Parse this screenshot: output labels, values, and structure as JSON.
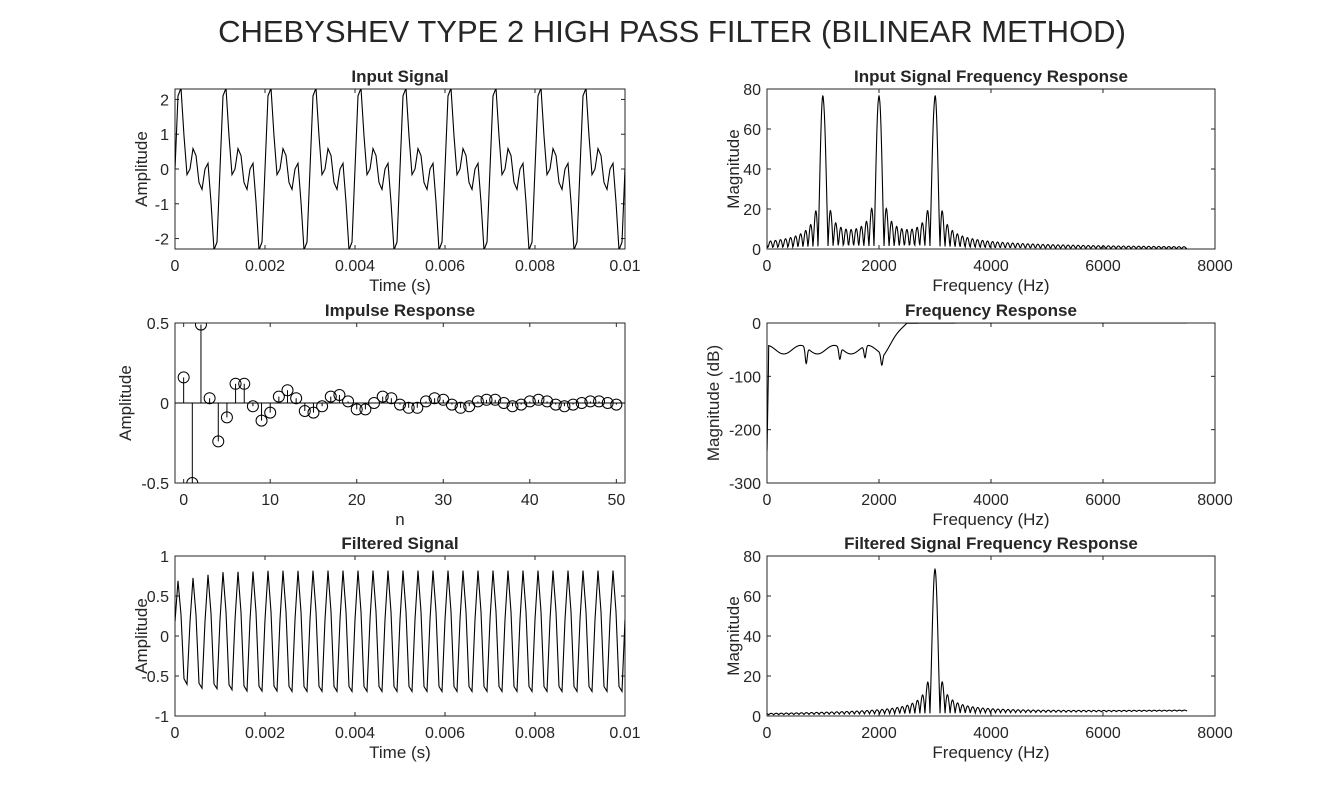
{
  "figure_title": "CHEBYSHEV TYPE 2 HIGH PASS FILTER (BILINEAR METHOD)",
  "chart_data": [
    {
      "id": "input_signal",
      "type": "line",
      "title": "Input Signal",
      "xlabel": "Time (s)",
      "ylabel": "Amplitude",
      "xlim": [
        0,
        0.01
      ],
      "ylim": [
        -2.3,
        2.3
      ],
      "xticks": [
        0,
        0.002,
        0.004,
        0.006,
        0.008,
        0.01
      ],
      "yticks": [
        -2,
        -1,
        0,
        1,
        2
      ],
      "xtick_labels": [
        "0",
        "0.002",
        "0.004",
        "0.006",
        "0.008",
        "0.01"
      ],
      "ytick_labels": [
        "-2",
        "-1",
        "0",
        "1",
        "2"
      ],
      "grid": false,
      "line_color": "#000000",
      "signal": {
        "kind": "sum_of_sines",
        "fs": 15000,
        "components_hz": [
          1000,
          2000,
          3000
        ],
        "amplitudes": [
          1,
          1,
          1
        ],
        "duration_s": 0.01
      }
    },
    {
      "id": "input_spectrum",
      "type": "line",
      "title": "Input Signal Frequency Response",
      "xlabel": "Frequency (Hz)",
      "ylabel": "Magnitude",
      "xlim": [
        0,
        8000
      ],
      "ylim": [
        0,
        80
      ],
      "xticks": [
        0,
        2000,
        4000,
        6000,
        8000
      ],
      "yticks": [
        0,
        20,
        40,
        60,
        80
      ],
      "xtick_labels": [
        "0",
        "2000",
        "4000",
        "6000",
        "8000"
      ],
      "ytick_labels": [
        "0",
        "20",
        "40",
        "60",
        "80"
      ],
      "grid": false,
      "line_color": "#000000",
      "peaks": [
        {
          "x": 1000,
          "y": 75
        },
        {
          "x": 2000,
          "y": 75
        },
        {
          "x": 3000,
          "y": 75
        }
      ],
      "freq_max": 7500
    },
    {
      "id": "impulse_response",
      "type": "stem",
      "title": "Impulse Response",
      "xlabel": "n",
      "ylabel": "Amplitude",
      "xlim": [
        -1,
        51
      ],
      "ylim": [
        -0.5,
        0.5
      ],
      "xticks": [
        0,
        10,
        20,
        30,
        40,
        50
      ],
      "yticks": [
        -0.5,
        0,
        0.5
      ],
      "xtick_labels": [
        "0",
        "10",
        "20",
        "30",
        "40",
        "50"
      ],
      "ytick_labels": [
        "-0.5",
        "0",
        "0.5"
      ],
      "grid": false,
      "line_color": "#000000",
      "x": [
        0,
        1,
        2,
        3,
        4,
        5,
        6,
        7,
        8,
        9,
        10,
        11,
        12,
        13,
        14,
        15,
        16,
        17,
        18,
        19,
        20,
        21,
        22,
        23,
        24,
        25,
        26,
        27,
        28,
        29,
        30,
        31,
        32,
        33,
        34,
        35,
        36,
        37,
        38,
        39,
        40,
        41,
        42,
        43,
        44,
        45,
        46,
        47,
        48,
        49,
        50
      ],
      "values": [
        0.16,
        -0.5,
        0.49,
        0.03,
        -0.24,
        -0.09,
        0.12,
        0.12,
        -0.02,
        -0.11,
        -0.06,
        0.04,
        0.08,
        0.03,
        -0.05,
        -0.06,
        -0.02,
        0.04,
        0.05,
        0.01,
        -0.04,
        -0.04,
        0.0,
        0.04,
        0.03,
        -0.01,
        -0.03,
        -0.03,
        0.01,
        0.03,
        0.02,
        -0.01,
        -0.03,
        -0.02,
        0.01,
        0.02,
        0.02,
        0.0,
        -0.02,
        -0.01,
        0.01,
        0.02,
        0.01,
        -0.01,
        -0.02,
        -0.01,
        0.0,
        0.01,
        0.01,
        0.0,
        -0.01
      ]
    },
    {
      "id": "filter_frequency_response",
      "type": "line",
      "title": "Frequency Response",
      "xlabel": "Frequency (Hz)",
      "ylabel": "Magnitude (dB)",
      "xlim": [
        0,
        8000
      ],
      "ylim": [
        -300,
        0
      ],
      "xticks": [
        0,
        2000,
        4000,
        6000,
        8000
      ],
      "yticks": [
        -300,
        -200,
        -100,
        0
      ],
      "xtick_labels": [
        "0",
        "2000",
        "4000",
        "6000",
        "8000"
      ],
      "ytick_labels": [
        "-300",
        "-200",
        "-100",
        "0"
      ],
      "grid": false,
      "line_color": "#000000",
      "stopband_ripple_db": -50,
      "notches_hz": [
        700,
        1300,
        1750,
        2050
      ],
      "passband_edge_hz": 2500,
      "freq_max": 7500
    },
    {
      "id": "filtered_signal",
      "type": "line",
      "title": "Filtered Signal",
      "xlabel": "Time (s)",
      "ylabel": "Amplitude",
      "xlim": [
        0,
        0.01
      ],
      "ylim": [
        -1,
        1
      ],
      "xticks": [
        0,
        0.002,
        0.004,
        0.006,
        0.008,
        0.01
      ],
      "yticks": [
        -1,
        -0.5,
        0,
        0.5,
        1
      ],
      "xtick_labels": [
        "0",
        "0.002",
        "0.004",
        "0.006",
        "0.008",
        "0.01"
      ],
      "ytick_labels": [
        "-1",
        "-0.5",
        "0",
        "0.5",
        "1"
      ],
      "grid": false,
      "line_color": "#000000",
      "signal": {
        "kind": "sine",
        "fs": 15000,
        "frequency_hz": 3000,
        "steady_amplitude": 0.82,
        "duration_s": 0.01
      }
    },
    {
      "id": "filtered_spectrum",
      "type": "line",
      "title": "Filtered Signal Frequency Response",
      "xlabel": "Frequency (Hz)",
      "ylabel": "Magnitude",
      "xlim": [
        0,
        8000
      ],
      "ylim": [
        0,
        80
      ],
      "xticks": [
        0,
        2000,
        4000,
        6000,
        8000
      ],
      "yticks": [
        0,
        20,
        40,
        60,
        80
      ],
      "xtick_labels": [
        "0",
        "2000",
        "4000",
        "6000",
        "8000"
      ],
      "ytick_labels": [
        "0",
        "20",
        "40",
        "60",
        "80"
      ],
      "grid": false,
      "line_color": "#000000",
      "peaks": [
        {
          "x": 3000,
          "y": 72
        }
      ],
      "freq_max": 7500
    }
  ]
}
